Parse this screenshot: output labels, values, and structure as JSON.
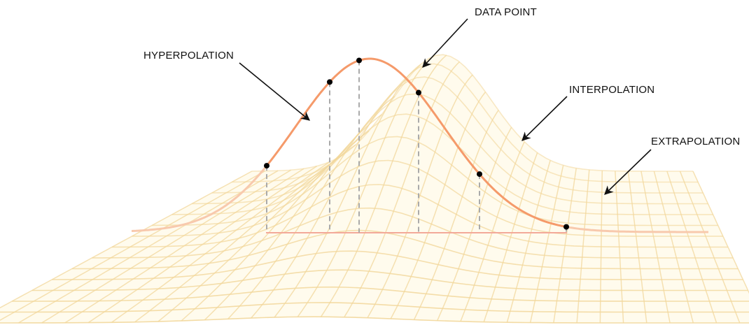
{
  "labels": {
    "data_point": "DATA POINT",
    "hyperpolation": "HYPERPOLATION",
    "interpolation": "INTERPOLATION",
    "extrapolation": "EXTRAPOLATION"
  },
  "colors": {
    "surface_grid": "#f2d79b",
    "surface_fill": "#fff8df",
    "curve": "#f59a6a",
    "curve_faded": "#f8c9ad",
    "baseline": "#f3a999",
    "dashed_drop": "#aaaaaa",
    "point": "#000000",
    "arrow": "#111111"
  }
}
